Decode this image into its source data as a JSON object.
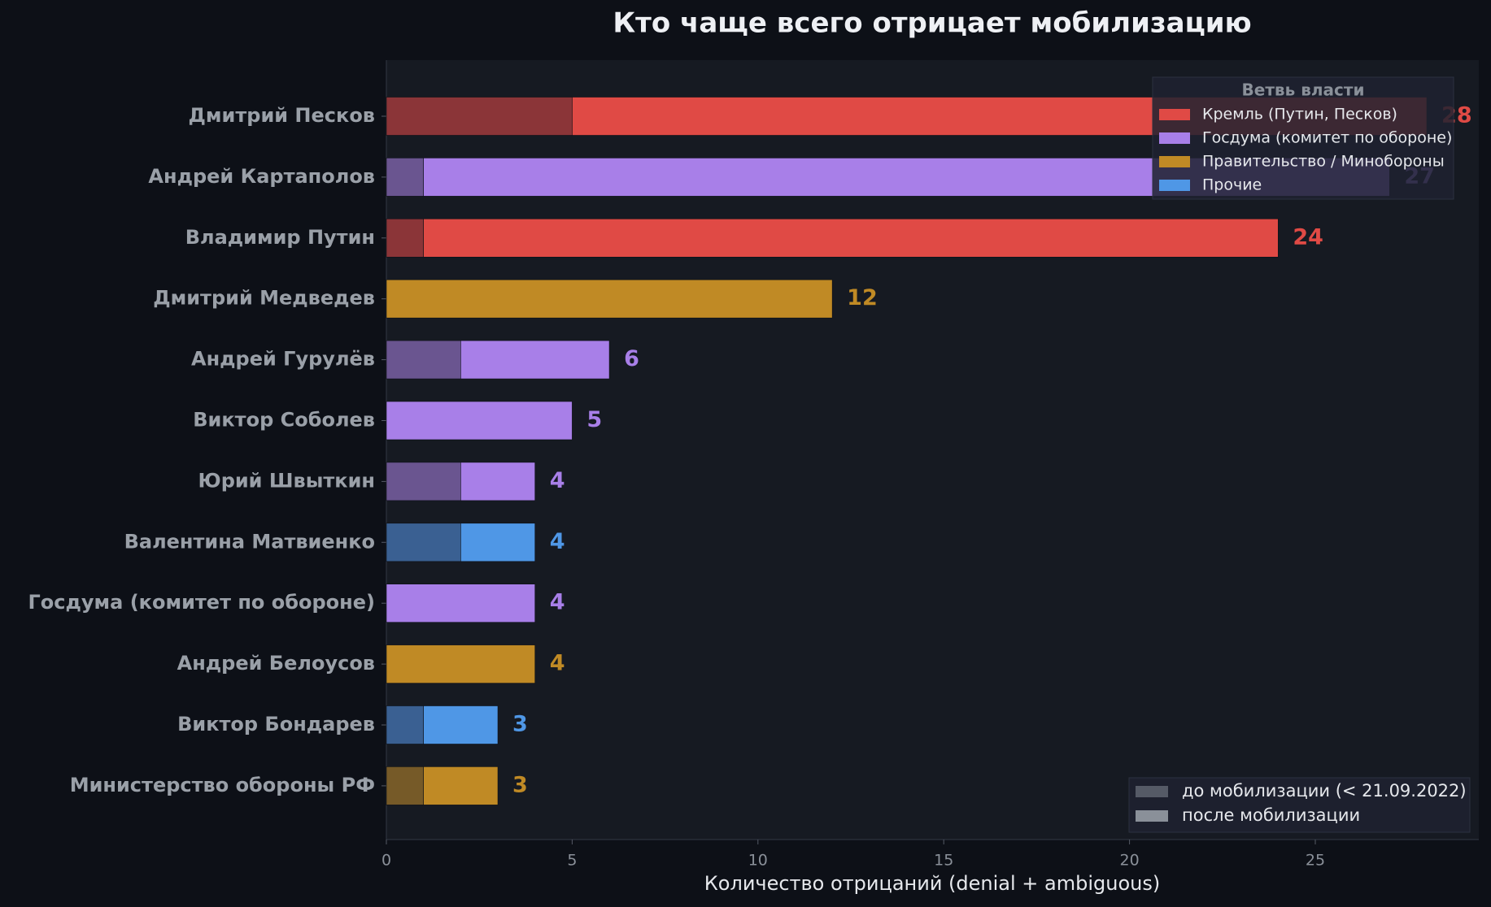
{
  "chart_data": {
    "type": "stacked-barh",
    "title": "Кто чаще всего отрицает мобилизацию",
    "x_label": "Количество отрицаний (denial + ambiguous)",
    "categories": [
      "Дмитрий Песков",
      "Андрей Картаполов",
      "Владимир Путин",
      "Дмитрий Медведев",
      "Андрей Гурулёв",
      "Виктор Соболев",
      "Юрий Швыткин",
      "Валентина Матвиенко",
      "Госдума (комитет по обороне)",
      "Андрей Белоусов",
      "Виктор Бондарев",
      "Министерство обороны РФ"
    ],
    "category_branch": [
      0,
      1,
      0,
      2,
      1,
      1,
      1,
      3,
      1,
      2,
      3,
      2
    ],
    "series": [
      {
        "name": "до мобилизации (< 21.09.2022)",
        "color": "#555a66",
        "values": [
          5,
          1,
          1,
          0,
          2,
          0,
          2,
          2,
          0,
          0,
          1,
          1
        ]
      },
      {
        "name": "после мобилизации",
        "color": "#8a9099",
        "values": [
          23,
          26,
          23,
          12,
          4,
          5,
          2,
          2,
          4,
          4,
          2,
          2
        ]
      }
    ],
    "totals": [
      28,
      27,
      24,
      12,
      6,
      5,
      4,
      4,
      4,
      4,
      3,
      3
    ],
    "branch_legend_title": "Ветвь власти",
    "branches": [
      {
        "name": "Кремль (Путин, Песков)",
        "color": "#e04a45",
        "dark_color": "#8b3538"
      },
      {
        "name": "Госдума (комитет по обороне)",
        "color": "#a87fe8",
        "dark_color": "#6a5590"
      },
      {
        "name": "Правительство / Минобороны",
        "color": "#c08a25",
        "dark_color": "#765a28"
      },
      {
        "name": "Прочие",
        "color": "#4f97e6",
        "dark_color": "#3a6092"
      }
    ],
    "xlim": [
      0,
      29.4
    ],
    "xticks": [
      0,
      5,
      10,
      15,
      20,
      25
    ]
  }
}
